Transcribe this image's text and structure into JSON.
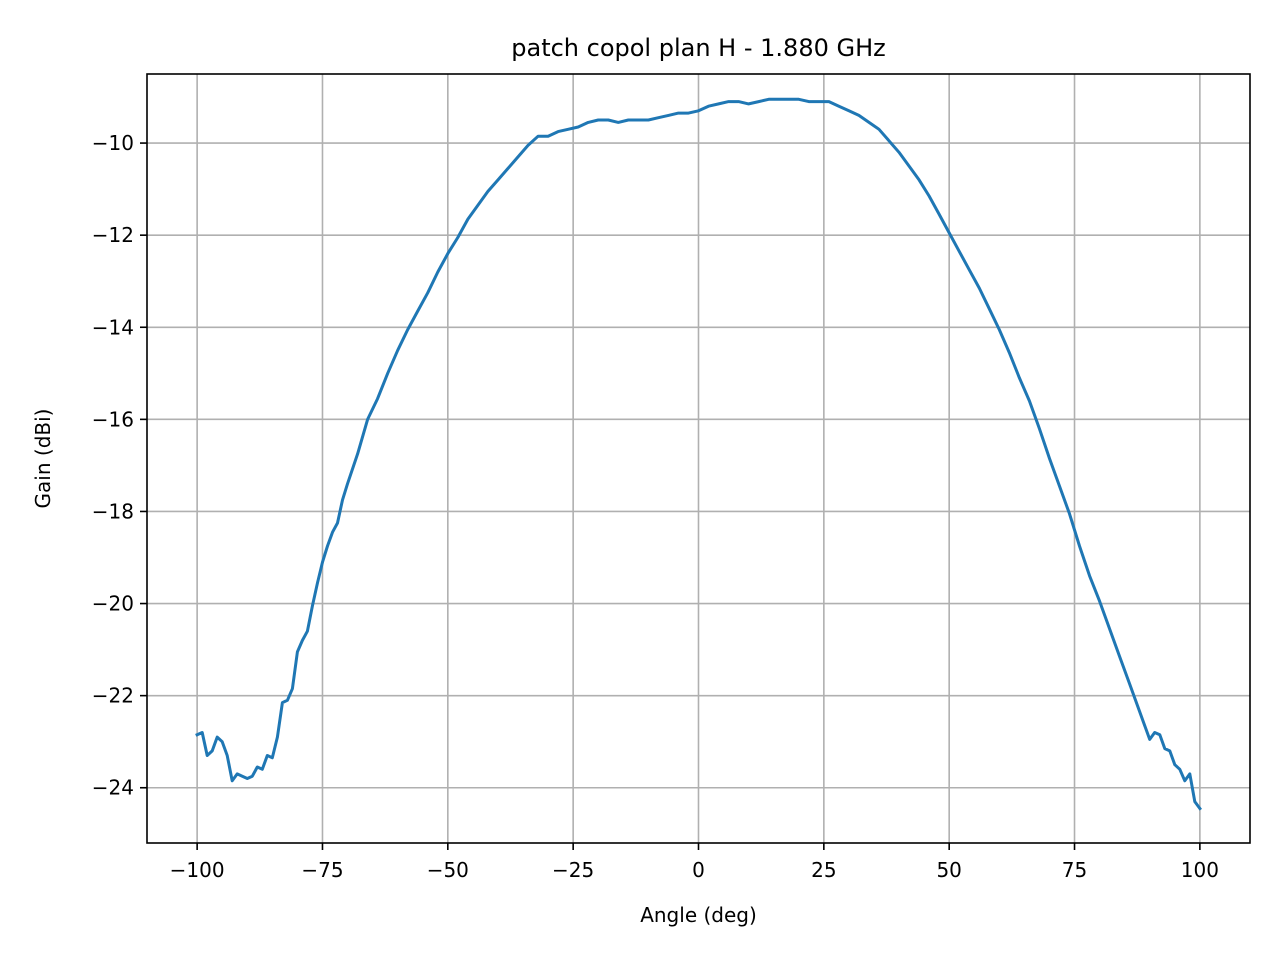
{
  "chart_data": {
    "type": "line",
    "title": "patch copol plan H - 1.880 GHz",
    "xlabel": "Angle (deg)",
    "ylabel": "Gain (dBi)",
    "xlim": [
      -110,
      110
    ],
    "ylim": [
      -25.2,
      -8.5
    ],
    "x_ticks": [
      -100,
      -75,
      -50,
      -25,
      0,
      25,
      50,
      75,
      100
    ],
    "x_tick_labels": [
      "−100",
      "−75",
      "−50",
      "−25",
      "0",
      "25",
      "50",
      "75",
      "100"
    ],
    "y_ticks": [
      -24,
      -22,
      -20,
      -18,
      -16,
      -14,
      -12,
      -10
    ],
    "y_tick_labels": [
      "−24",
      "−22",
      "−20",
      "−18",
      "−16",
      "−14",
      "−12",
      "−10"
    ],
    "grid": true,
    "colors": {
      "line": "#1f77b4",
      "grid": "#b0b0b0",
      "axes": "#000000"
    },
    "series": [
      {
        "x": [
          -100,
          -99,
          -98,
          -97,
          -96,
          -95,
          -94,
          -93,
          -92,
          -91,
          -90,
          -89,
          -88,
          -87,
          -86,
          -85,
          -84,
          -83,
          -82,
          -81,
          -80,
          -79,
          -78,
          -77,
          -76,
          -75,
          -74,
          -73,
          -72,
          -71,
          -70,
          -68,
          -66,
          -64,
          -62,
          -60,
          -58,
          -56,
          -54,
          -52,
          -50,
          -48,
          -46,
          -44,
          -42,
          -40,
          -38,
          -36,
          -34,
          -32,
          -30,
          -28,
          -26,
          -24,
          -22,
          -20,
          -18,
          -16,
          -14,
          -12,
          -10,
          -8,
          -6,
          -4,
          -2,
          0,
          2,
          4,
          6,
          8,
          10,
          12,
          14,
          16,
          18,
          20,
          22,
          24,
          26,
          28,
          30,
          32,
          34,
          36,
          38,
          40,
          42,
          44,
          46,
          48,
          50,
          52,
          54,
          56,
          58,
          60,
          62,
          64,
          66,
          68,
          70,
          72,
          74,
          76,
          78,
          80,
          82,
          84,
          86,
          88,
          90,
          91,
          92,
          93,
          94,
          95,
          96,
          97,
          98,
          99,
          100
        ],
        "y": [
          -22.85,
          -22.8,
          -23.3,
          -23.2,
          -22.9,
          -23.0,
          -23.3,
          -23.85,
          -23.7,
          -23.75,
          -23.8,
          -23.75,
          -23.55,
          -23.6,
          -23.3,
          -23.35,
          -22.9,
          -22.15,
          -22.1,
          -21.85,
          -21.05,
          -20.8,
          -20.6,
          -20.05,
          -19.55,
          -19.1,
          -18.75,
          -18.45,
          -18.25,
          -17.75,
          -17.4,
          -16.75,
          -16.0,
          -15.55,
          -15.0,
          -14.5,
          -14.05,
          -13.65,
          -13.25,
          -12.8,
          -12.4,
          -12.05,
          -11.65,
          -11.35,
          -11.05,
          -10.8,
          -10.55,
          -10.3,
          -10.05,
          -9.85,
          -9.85,
          -9.75,
          -9.7,
          -9.65,
          -9.55,
          -9.5,
          -9.5,
          -9.55,
          -9.5,
          -9.5,
          -9.5,
          -9.45,
          -9.4,
          -9.35,
          -9.35,
          -9.3,
          -9.2,
          -9.15,
          -9.1,
          -9.1,
          -9.15,
          -9.1,
          -9.05,
          -9.05,
          -9.05,
          -9.05,
          -9.1,
          -9.1,
          -9.1,
          -9.2,
          -9.3,
          -9.4,
          -9.55,
          -9.7,
          -9.95,
          -10.2,
          -10.5,
          -10.8,
          -11.15,
          -11.55,
          -11.95,
          -12.35,
          -12.75,
          -13.15,
          -13.6,
          -14.05,
          -14.55,
          -15.1,
          -15.6,
          -16.2,
          -16.85,
          -17.45,
          -18.05,
          -18.75,
          -19.4,
          -19.95,
          -20.55,
          -21.15,
          -21.75,
          -22.35,
          -22.95,
          -22.8,
          -22.85,
          -23.15,
          -23.2,
          -23.5,
          -23.6,
          -23.85,
          -23.7,
          -24.3,
          -24.45
        ]
      }
    ]
  }
}
